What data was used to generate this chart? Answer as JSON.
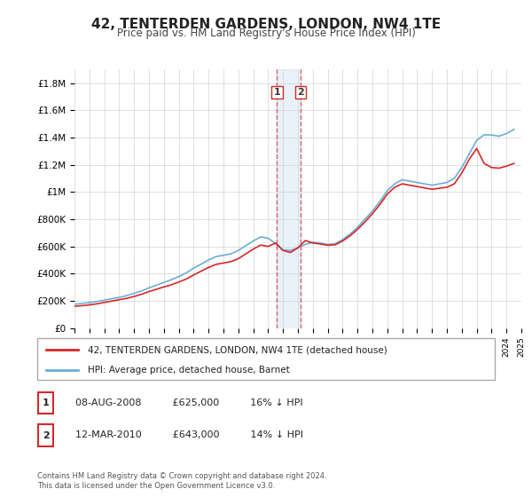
{
  "title": "42, TENTERDEN GARDENS, LONDON, NW4 1TE",
  "subtitle": "Price paid vs. HM Land Registry's House Price Index (HPI)",
  "legend_line1": "42, TENTERDEN GARDENS, LONDON, NW4 1TE (detached house)",
  "legend_line2": "HPI: Average price, detached house, Barnet",
  "table_rows": [
    {
      "num": "1",
      "date": "08-AUG-2008",
      "price": "£625,000",
      "note": "16% ↓ HPI"
    },
    {
      "num": "2",
      "date": "12-MAR-2010",
      "price": "£643,000",
      "note": "14% ↓ HPI"
    }
  ],
  "footnote": "Contains HM Land Registry data © Crown copyright and database right 2024.\nThis data is licensed under the Open Government Licence v3.0.",
  "hpi_color": "#6baed6",
  "price_color": "#d62728",
  "marker1_x": 2008.6,
  "marker2_x": 2010.2,
  "marker1_y": 625000,
  "marker2_y": 643000,
  "ylim": [
    0,
    1900000
  ],
  "xlim_start": 1995,
  "xlim_end": 2025,
  "yticks": [
    0,
    200000,
    400000,
    600000,
    800000,
    1000000,
    1200000,
    1400000,
    1600000,
    1800000
  ],
  "hpi_data_x": [
    1995,
    1995.5,
    1996,
    1996.5,
    1997,
    1997.5,
    1998,
    1998.5,
    1999,
    1999.5,
    2000,
    2000.5,
    2001,
    2001.5,
    2002,
    2002.5,
    2003,
    2003.5,
    2004,
    2004.5,
    2005,
    2005.5,
    2006,
    2006.5,
    2007,
    2007.5,
    2008,
    2008.5,
    2009,
    2009.5,
    2010,
    2010.5,
    2011,
    2011.5,
    2012,
    2012.5,
    2013,
    2013.5,
    2014,
    2014.5,
    2015,
    2015.5,
    2016,
    2016.5,
    2017,
    2017.5,
    2018,
    2018.5,
    2019,
    2019.5,
    2020,
    2020.5,
    2021,
    2021.5,
    2022,
    2022.5,
    2023,
    2023.5,
    2024,
    2024.5
  ],
  "hpi_data_y": [
    175000,
    180000,
    187000,
    195000,
    205000,
    215000,
    225000,
    238000,
    255000,
    272000,
    295000,
    315000,
    335000,
    355000,
    378000,
    405000,
    440000,
    470000,
    500000,
    525000,
    535000,
    545000,
    570000,
    605000,
    640000,
    670000,
    660000,
    620000,
    575000,
    570000,
    590000,
    615000,
    630000,
    625000,
    615000,
    620000,
    650000,
    690000,
    740000,
    800000,
    860000,
    930000,
    1010000,
    1060000,
    1090000,
    1080000,
    1070000,
    1060000,
    1050000,
    1060000,
    1070000,
    1100000,
    1180000,
    1280000,
    1380000,
    1420000,
    1420000,
    1410000,
    1430000,
    1460000
  ],
  "price_data_x": [
    1995,
    1995.5,
    1996,
    1996.5,
    1997,
    1997.5,
    1998,
    1998.5,
    1999,
    1999.5,
    2000,
    2000.5,
    2001,
    2001.5,
    2002,
    2002.5,
    2003,
    2003.5,
    2004,
    2004.5,
    2005,
    2005.5,
    2006,
    2006.5,
    2007,
    2007.5,
    2008,
    2008.5,
    2009,
    2009.5,
    2010,
    2010.5,
    2011,
    2011.5,
    2012,
    2012.5,
    2013,
    2013.5,
    2014,
    2014.5,
    2015,
    2015.5,
    2016,
    2016.5,
    2017,
    2017.5,
    2018,
    2018.5,
    2019,
    2019.5,
    2020,
    2020.5,
    2021,
    2021.5,
    2022,
    2022.5,
    2023,
    2023.5,
    2024,
    2024.5
  ],
  "price_data_y": [
    160000,
    164000,
    170000,
    178000,
    188000,
    198000,
    208000,
    218000,
    232000,
    248000,
    268000,
    285000,
    302000,
    318000,
    338000,
    360000,
    390000,
    418000,
    445000,
    468000,
    478000,
    488000,
    510000,
    545000,
    580000,
    610000,
    600000,
    625000,
    570000,
    555000,
    590000,
    643000,
    625000,
    618000,
    608000,
    612000,
    640000,
    678000,
    725000,
    780000,
    840000,
    908000,
    985000,
    1035000,
    1060000,
    1050000,
    1040000,
    1030000,
    1020000,
    1028000,
    1035000,
    1060000,
    1140000,
    1240000,
    1320000,
    1210000,
    1180000,
    1175000,
    1190000,
    1210000
  ]
}
